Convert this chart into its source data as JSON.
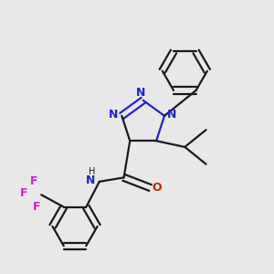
{
  "background_color": "#e8e8e8",
  "bond_color": "#1a1a1a",
  "nitrogen_color": "#2222cc",
  "oxygen_color": "#cc2200",
  "fluorine_color": "#cc22cc",
  "line_width": 1.6,
  "figsize": [
    3.0,
    3.0
  ],
  "dpi": 100,
  "xlim": [
    -2.2,
    3.0
  ],
  "ylim": [
    -3.8,
    2.8
  ]
}
